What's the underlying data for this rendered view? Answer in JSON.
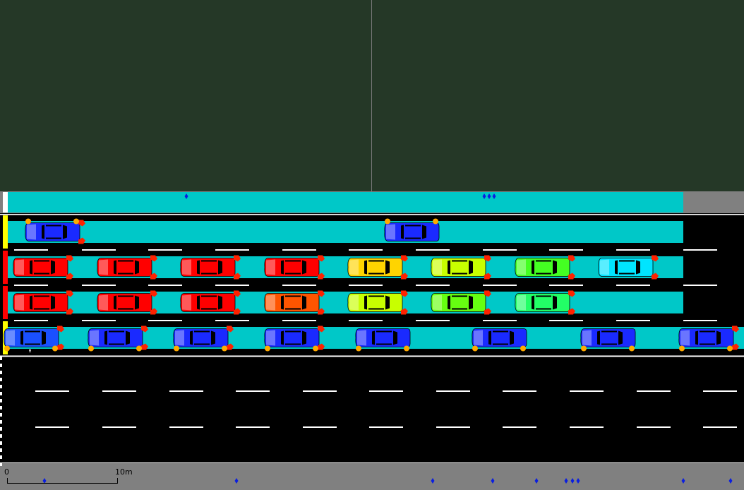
{
  "colors": {
    "background": "#253827",
    "lane_highlight": "#00c8c8",
    "road": "#000000",
    "sidewalk": "#808080",
    "lane_marking": "#ffffff",
    "detector": "#0a1ee0",
    "brake_light": "#ff2200",
    "blinker": "#ffaa00",
    "stop_red": "#ff0000",
    "stop_yellow": "#ffff00"
  },
  "scale_bar": {
    "start_label": "0",
    "end_label": "10m"
  },
  "lanes": [
    {
      "name": "lane-1",
      "highlighted": true,
      "signal": "yellow",
      "vehicles": [
        {
          "color": "#1a2aff",
          "blinker": "left",
          "brake": true
        },
        {
          "color": "#1a2aff",
          "blinker": "left",
          "brake": false
        }
      ]
    },
    {
      "name": "lane-2",
      "highlighted": true,
      "signal": "red",
      "vehicles": [
        {
          "color": "#ff0000",
          "blinker": "none",
          "brake": true
        },
        {
          "color": "#ff0000",
          "blinker": "none",
          "brake": true
        },
        {
          "color": "#ff0000",
          "blinker": "none",
          "brake": true
        },
        {
          "color": "#ff0000",
          "blinker": "none",
          "brake": true
        },
        {
          "color": "#ffd400",
          "blinker": "none",
          "brake": true
        },
        {
          "color": "#c8ff00",
          "blinker": "none",
          "brake": true
        },
        {
          "color": "#44ff22",
          "blinker": "none",
          "brake": true
        },
        {
          "color": "#00e5ff",
          "blinker": "none",
          "brake": true
        }
      ]
    },
    {
      "name": "lane-3",
      "highlighted": true,
      "signal": "red",
      "vehicles": [
        {
          "color": "#ff0000",
          "blinker": "none",
          "brake": true
        },
        {
          "color": "#ff0000",
          "blinker": "none",
          "brake": true
        },
        {
          "color": "#ff0000",
          "blinker": "none",
          "brake": true
        },
        {
          "color": "#ff5500",
          "blinker": "none",
          "brake": true
        },
        {
          "color": "#c8ff00",
          "blinker": "none",
          "brake": true
        },
        {
          "color": "#66ff11",
          "blinker": "none",
          "brake": true
        },
        {
          "color": "#22ff66",
          "blinker": "none",
          "brake": true
        }
      ]
    },
    {
      "name": "lane-4",
      "highlighted": true,
      "signal": "yellow",
      "vehicles": [
        {
          "color": "#1a50ff",
          "blinker": "right",
          "brake": true
        },
        {
          "color": "#1a2aff",
          "blinker": "right",
          "brake": true
        },
        {
          "color": "#1a2aff",
          "blinker": "right",
          "brake": true
        },
        {
          "color": "#1a2aff",
          "blinker": "right",
          "brake": true
        },
        {
          "color": "#1a2aff",
          "blinker": "right",
          "brake": false
        },
        {
          "color": "#1a2aff",
          "blinker": "right",
          "brake": false
        },
        {
          "color": "#1a2aff",
          "blinker": "right",
          "brake": false
        },
        {
          "color": "#1a2aff",
          "blinker": "right",
          "brake": true
        }
      ]
    },
    {
      "name": "lane-5",
      "highlighted": false,
      "signal": "none",
      "vehicles": []
    },
    {
      "name": "lane-6",
      "highlighted": false,
      "signal": "none",
      "vehicles": []
    },
    {
      "name": "lane-7",
      "highlighted": false,
      "signal": "none",
      "vehicles": []
    }
  ]
}
